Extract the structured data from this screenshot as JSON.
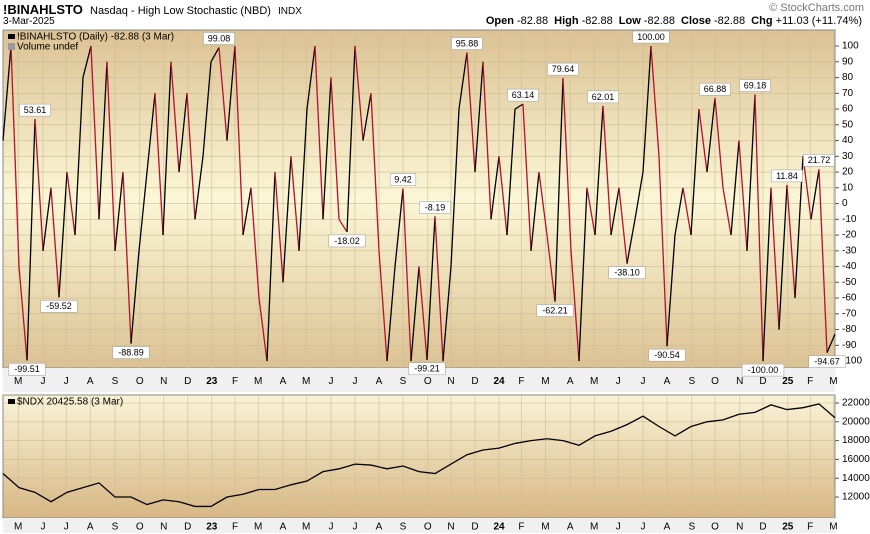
{
  "header": {
    "symbol": "!BINAHLSTO",
    "name": "Nasdaq - High Low Stochastic (NBD)",
    "exchange": "INDX",
    "date": "3-Mar-2025",
    "credit": "© StockCharts.com",
    "quote": [
      {
        "label": "Open",
        "value": "-82.88"
      },
      {
        "label": "High",
        "value": "-82.88"
      },
      {
        "label": "Low",
        "value": "-82.88"
      },
      {
        "label": "Close",
        "value": "-82.88"
      },
      {
        "label": "Chg",
        "value": "+11.03 (+11.74%)"
      }
    ]
  },
  "chart_data": [
    {
      "type": "line",
      "subtitle": "Volume undef",
      "up_color": "#000000",
      "grid": true,
      "series": [
        {
          "name": "!BINAHLSTO (Daily) -82.88 (3 Mar)",
          "color": "#b5102e",
          "values": [
            40,
            100,
            -40,
            -99.51,
            53.61,
            -30,
            10,
            -59.52,
            20,
            -20,
            80,
            100,
            -10,
            90,
            -30,
            20,
            -88.89,
            -30,
            20,
            70,
            -20,
            90,
            20,
            70,
            -10,
            30,
            90,
            99.08,
            40,
            100,
            -20,
            10,
            -60,
            -100,
            20,
            -50,
            30,
            -30,
            60,
            100,
            -10,
            80,
            -10,
            -18.02,
            100,
            40,
            70,
            -30,
            -100,
            -40,
            9.42,
            -100,
            -40,
            -99.21,
            -8.19,
            -100,
            -40,
            60,
            95.88,
            20,
            90,
            -10,
            30,
            -20,
            60,
            63.14,
            -30,
            20,
            -20,
            -62.21,
            79.64,
            -30,
            -100,
            10,
            -20,
            62.01,
            -20,
            10,
            -38.1,
            -10,
            20,
            100,
            30,
            -90.54,
            -20,
            10,
            -20,
            60,
            20,
            66.88,
            10,
            -20,
            40,
            -30,
            69.18,
            -100,
            10,
            -80,
            11.84,
            -60,
            30,
            -10,
            21.72,
            -94.67,
            -82.88
          ],
          "value_labels": [
            null,
            null,
            null,
            "-99.51",
            "53.61",
            null,
            null,
            "-59.52",
            null,
            null,
            null,
            null,
            null,
            null,
            null,
            null,
            "-88.89",
            null,
            null,
            null,
            null,
            null,
            null,
            null,
            null,
            null,
            null,
            "99.08",
            null,
            null,
            null,
            null,
            null,
            null,
            null,
            null,
            null,
            null,
            null,
            null,
            null,
            null,
            null,
            "-18.02",
            null,
            null,
            null,
            null,
            null,
            null,
            "9.42",
            null,
            null,
            "-99.21",
            "-8.19",
            null,
            null,
            null,
            "95.88",
            null,
            null,
            null,
            null,
            null,
            null,
            "63.14",
            null,
            null,
            null,
            "-62.21",
            "79.64",
            null,
            null,
            null,
            null,
            "62.01",
            null,
            null,
            "-38.10",
            null,
            null,
            "100.00",
            null,
            "-90.54",
            null,
            null,
            null,
            null,
            null,
            "66.88",
            null,
            null,
            null,
            null,
            "69.18",
            "-100.00",
            null,
            null,
            "11.84",
            null,
            null,
            null,
            "21.72",
            "-94.67",
            null
          ]
        }
      ],
      "xlim": [
        0,
        104
      ],
      "ylim": [
        -104.4,
        110.2
      ],
      "yticks": [
        100,
        90,
        80,
        70,
        60,
        50,
        40,
        30,
        20,
        10,
        0,
        -10,
        -20,
        -30,
        -40,
        -50,
        -60,
        -70,
        -80,
        -90,
        -100
      ],
      "xticks": [
        {
          "value": 1.9,
          "label": "M"
        },
        {
          "value": 5,
          "label": "J"
        },
        {
          "value": 7.9,
          "label": "J"
        },
        {
          "value": 10.9,
          "label": "A"
        },
        {
          "value": 14,
          "label": "S"
        },
        {
          "value": 17.1,
          "label": "O"
        },
        {
          "value": 20.1,
          "label": "N"
        },
        {
          "value": 23.1,
          "label": "D"
        },
        {
          "value": 26.1,
          "label": "23"
        },
        {
          "value": 29,
          "label": "F"
        },
        {
          "value": 31.9,
          "label": "M"
        },
        {
          "value": 35,
          "label": "A"
        },
        {
          "value": 37.9,
          "label": "M"
        },
        {
          "value": 41,
          "label": "J"
        },
        {
          "value": 44,
          "label": "J"
        },
        {
          "value": 47,
          "label": "A"
        },
        {
          "value": 50,
          "label": "S"
        },
        {
          "value": 53.1,
          "label": "O"
        },
        {
          "value": 56,
          "label": "N"
        },
        {
          "value": 59,
          "label": "D"
        },
        {
          "value": 62,
          "label": "24"
        },
        {
          "value": 64.8,
          "label": "F"
        },
        {
          "value": 67.8,
          "label": "M"
        },
        {
          "value": 70.9,
          "label": "A"
        },
        {
          "value": 73.9,
          "label": "M"
        },
        {
          "value": 76.9,
          "label": "J"
        },
        {
          "value": 80,
          "label": "J"
        },
        {
          "value": 83,
          "label": "A"
        },
        {
          "value": 86.1,
          "label": "S"
        },
        {
          "value": 89,
          "label": "O"
        },
        {
          "value": 92.1,
          "label": "N"
        },
        {
          "value": 95,
          "label": "D"
        },
        {
          "value": 98.1,
          "label": "25"
        },
        {
          "value": 100.9,
          "label": "F"
        },
        {
          "value": 103.8,
          "label": "M"
        }
      ]
    },
    {
      "type": "line",
      "grid": true,
      "series": [
        {
          "name": "$NDX 20425.58 (3 Mar)",
          "color": "#000000",
          "values": [
            14500,
            13000,
            12500,
            11500,
            12500,
            13000,
            13500,
            12000,
            12000,
            11200,
            11700,
            11500,
            11000,
            11000,
            12000,
            12300,
            12800,
            12800,
            13300,
            13700,
            14700,
            15000,
            15500,
            15400,
            15000,
            15300,
            14700,
            14500,
            15500,
            16500,
            17000,
            17200,
            17700,
            18000,
            18200,
            18000,
            17500,
            18500,
            19000,
            19700,
            20600,
            19500,
            18500,
            19500,
            20000,
            20200,
            20800,
            21000,
            21800,
            21300,
            21500,
            21900,
            20425.58
          ]
        }
      ],
      "xlim": [
        0,
        52
      ],
      "ylim": [
        9770,
        22850
      ],
      "yticks": [
        12000,
        14000,
        16000,
        18000,
        20000,
        22000
      ],
      "xticks": [
        {
          "value": 0.95,
          "label": "M"
        },
        {
          "value": 2.5,
          "label": "J"
        },
        {
          "value": 3.95,
          "label": "J"
        },
        {
          "value": 5.45,
          "label": "A"
        },
        {
          "value": 7,
          "label": "S"
        },
        {
          "value": 8.55,
          "label": "O"
        },
        {
          "value": 10.05,
          "label": "N"
        },
        {
          "value": 11.55,
          "label": "D"
        },
        {
          "value": 13.05,
          "label": "23"
        },
        {
          "value": 14.5,
          "label": "F"
        },
        {
          "value": 15.95,
          "label": "M"
        },
        {
          "value": 17.5,
          "label": "A"
        },
        {
          "value": 18.95,
          "label": "M"
        },
        {
          "value": 20.5,
          "label": "J"
        },
        {
          "value": 22,
          "label": "J"
        },
        {
          "value": 23.5,
          "label": "A"
        },
        {
          "value": 25,
          "label": "S"
        },
        {
          "value": 26.55,
          "label": "O"
        },
        {
          "value": 28,
          "label": "N"
        },
        {
          "value": 29.5,
          "label": "D"
        },
        {
          "value": 31,
          "label": "24"
        },
        {
          "value": 32.4,
          "label": "F"
        },
        {
          "value": 33.9,
          "label": "M"
        },
        {
          "value": 35.45,
          "label": "A"
        },
        {
          "value": 36.95,
          "label": "M"
        },
        {
          "value": 38.45,
          "label": "J"
        },
        {
          "value": 40,
          "label": "J"
        },
        {
          "value": 41.5,
          "label": "A"
        },
        {
          "value": 43.05,
          "label": "S"
        },
        {
          "value": 44.5,
          "label": "O"
        },
        {
          "value": 46.05,
          "label": "N"
        },
        {
          "value": 47.5,
          "label": "D"
        },
        {
          "value": 49.05,
          "label": "25"
        },
        {
          "value": 50.45,
          "label": "F"
        },
        {
          "value": 51.9,
          "label": "M"
        }
      ]
    }
  ]
}
